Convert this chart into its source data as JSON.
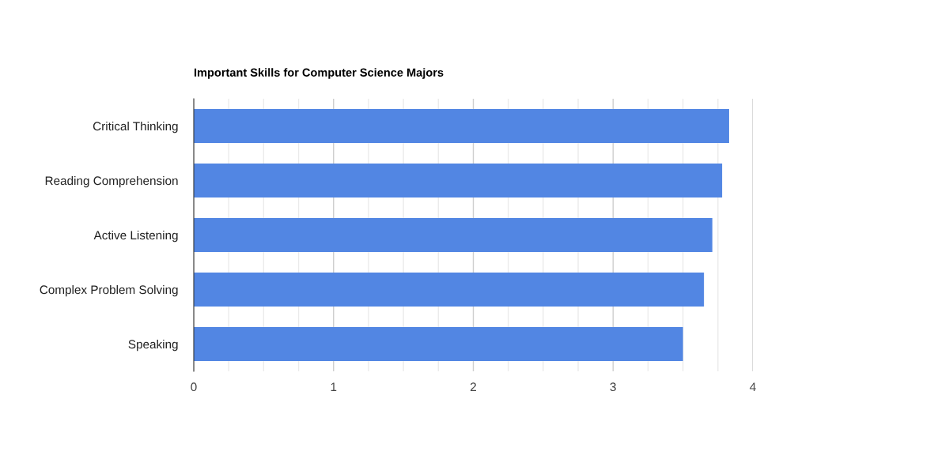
{
  "chart_data": {
    "type": "bar",
    "orientation": "horizontal",
    "title": "Important Skills for Computer Science Majors",
    "categories": [
      "Critical Thinking",
      "Reading Comprehension",
      "Active Listening",
      "Complex Problem Solving",
      "Speaking"
    ],
    "values": [
      3.83,
      3.78,
      3.71,
      3.65,
      3.5
    ],
    "color": "#5286e3",
    "xlim": [
      0,
      4
    ],
    "xticks": [
      0,
      {
        "value": 0.25,
        "label": null
      },
      {
        "value": 0.5,
        "label": null
      },
      {
        "value": 0.75,
        "label": null
      },
      1,
      {
        "value": 1.25,
        "label": null
      },
      {
        "value": 1.5,
        "label": null
      },
      {
        "value": 1.75,
        "label": null
      },
      2,
      {
        "value": 2.25,
        "label": null
      },
      {
        "value": 2.5,
        "label": null
      },
      {
        "value": 2.75,
        "label": null
      },
      3,
      {
        "value": 3.25,
        "label": null
      },
      {
        "value": 3.5,
        "label": null
      },
      {
        "value": 3.75,
        "label": null
      },
      4
    ],
    "grid": "x",
    "legend": false
  }
}
